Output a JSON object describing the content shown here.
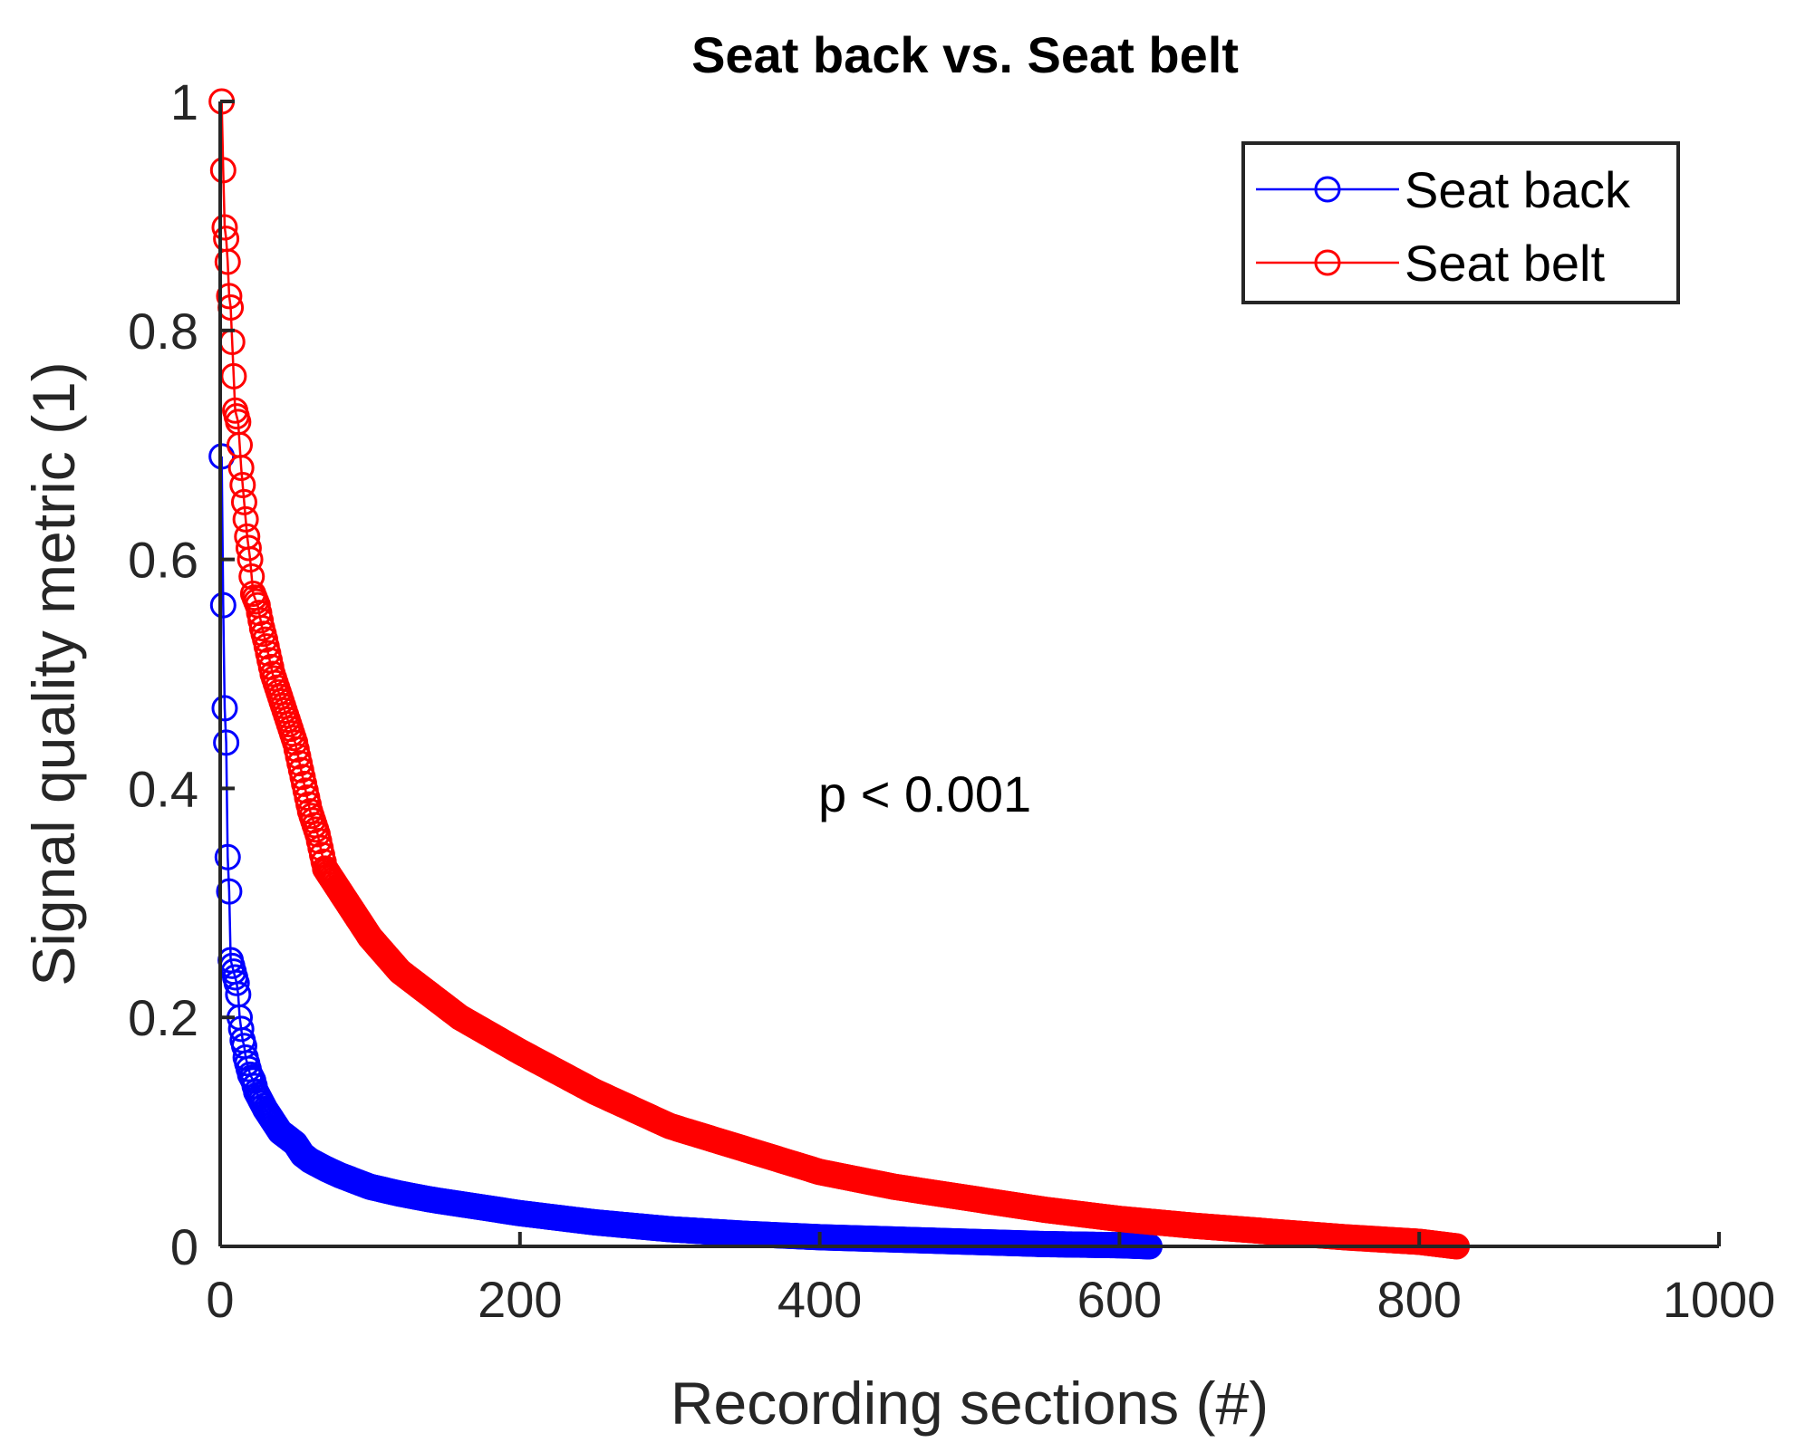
{
  "chart_data": {
    "type": "line",
    "title": "Seat back vs. Seat belt",
    "xlabel": "Recording sections (#)",
    "ylabel": "Signal quality metric (1)",
    "xlim": [
      0,
      1000
    ],
    "ylim": [
      0,
      1
    ],
    "xticks": [
      "0",
      "200",
      "400",
      "600",
      "800",
      "1000"
    ],
    "yticks": [
      "0",
      "0.2",
      "0.4",
      "0.6",
      "0.8",
      "1"
    ],
    "grid": false,
    "legend_position": "top-right",
    "annotation": "p < 0.001",
    "marker": "circle",
    "series": [
      {
        "name": "Seat back",
        "color": "#0000ff",
        "n_points": 620,
        "x": [
          1,
          2,
          3,
          4,
          5,
          6,
          7,
          8,
          9,
          10,
          11,
          12,
          13,
          14,
          15,
          16,
          17,
          18,
          19,
          20,
          22,
          24,
          26,
          28,
          30,
          35,
          40,
          45,
          50,
          55,
          60,
          70,
          80,
          90,
          100,
          120,
          140,
          160,
          180,
          200,
          250,
          300,
          350,
          400,
          450,
          500,
          550,
          600,
          620
        ],
        "y": [
          0.69,
          0.56,
          0.47,
          0.44,
          0.34,
          0.31,
          0.25,
          0.245,
          0.24,
          0.235,
          0.23,
          0.22,
          0.2,
          0.19,
          0.18,
          0.175,
          0.165,
          0.16,
          0.155,
          0.15,
          0.145,
          0.135,
          0.13,
          0.125,
          0.12,
          0.11,
          0.1,
          0.095,
          0.09,
          0.08,
          0.075,
          0.068,
          0.062,
          0.057,
          0.052,
          0.046,
          0.041,
          0.037,
          0.033,
          0.029,
          0.021,
          0.015,
          0.011,
          0.008,
          0.006,
          0.004,
          0.002,
          0.001,
          0.0
        ]
      },
      {
        "name": "Seat belt",
        "color": "#ff0000",
        "n_points": 825,
        "x": [
          1,
          2,
          3,
          4,
          5,
          6,
          7,
          8,
          9,
          10,
          12,
          14,
          16,
          18,
          20,
          22,
          25,
          28,
          30,
          35,
          40,
          45,
          50,
          55,
          60,
          65,
          70,
          80,
          90,
          100,
          120,
          140,
          160,
          180,
          200,
          250,
          300,
          350,
          400,
          450,
          500,
          550,
          600,
          650,
          700,
          750,
          800,
          825
        ],
        "y": [
          1.0,
          0.94,
          0.89,
          0.88,
          0.86,
          0.83,
          0.82,
          0.79,
          0.76,
          0.73,
          0.72,
          0.68,
          0.65,
          0.62,
          0.6,
          0.57,
          0.56,
          0.54,
          0.53,
          0.5,
          0.48,
          0.46,
          0.44,
          0.41,
          0.38,
          0.36,
          0.33,
          0.31,
          0.29,
          0.27,
          0.24,
          0.22,
          0.2,
          0.185,
          0.17,
          0.135,
          0.105,
          0.085,
          0.065,
          0.052,
          0.042,
          0.032,
          0.024,
          0.018,
          0.013,
          0.008,
          0.004,
          0.0
        ]
      }
    ]
  }
}
